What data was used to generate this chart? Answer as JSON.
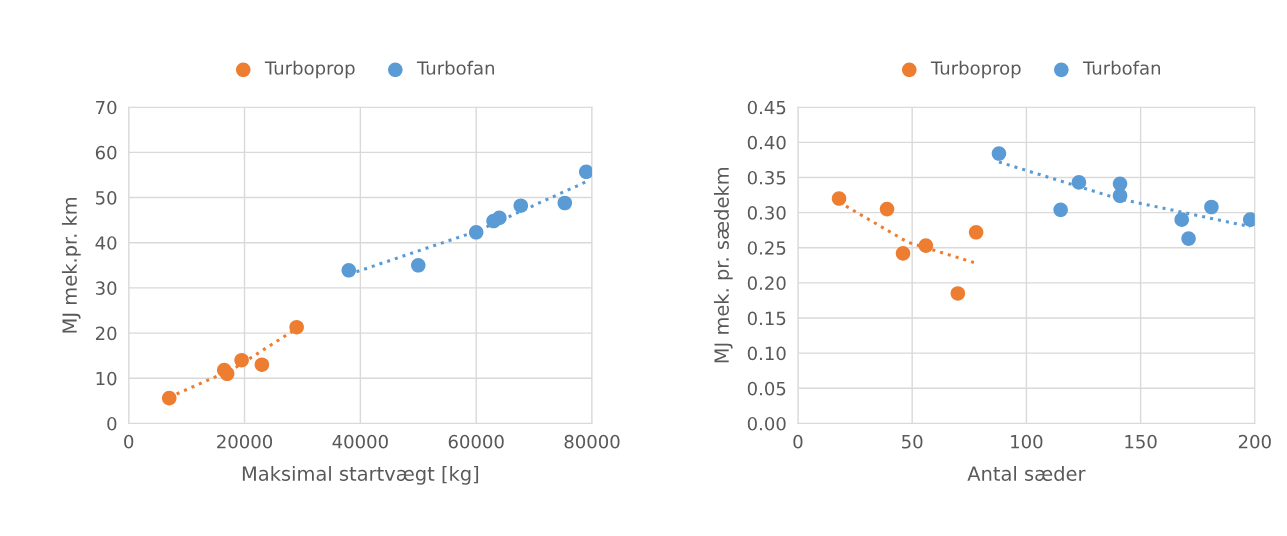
{
  "chart_data": [
    {
      "type": "scatter",
      "xlabel": "Maksimal startvægt [kg]",
      "ylabel": "MJ mek.pr. km",
      "xlim": [
        0,
        80000
      ],
      "xticks": [
        0,
        20000,
        40000,
        60000,
        80000
      ],
      "ylim": [
        0,
        70
      ],
      "yticks": [
        0,
        10,
        20,
        30,
        40,
        50,
        60,
        70
      ],
      "grid": true,
      "legend": "top",
      "series": [
        {
          "name": "Turboprop",
          "marker": "circle",
          "color": "#ed7d31",
          "x": [
            7000,
            16500,
            17000,
            19500,
            23000,
            29000
          ],
          "values": [
            5.6,
            11.8,
            11,
            14,
            13,
            21.3
          ]
        },
        {
          "name": "Turbofan",
          "marker": "circle",
          "color": "#5b9bd5",
          "x": [
            38000,
            50000,
            60000,
            63000,
            64000,
            67700,
            75300,
            79000
          ],
          "values": [
            33.9,
            35,
            42.3,
            44.8,
            45.5,
            48.2,
            48.8,
            55.7
          ]
        },
        {
          "type": "line",
          "marker": "none",
          "line_style": "dotted",
          "color": "#ed7d31",
          "x": [
            7000,
            18000,
            29000
          ],
          "values": [
            5.8,
            12,
            21
          ]
        },
        {
          "type": "line",
          "marker": "none",
          "line_style": "dotted",
          "color": "#5b9bd5",
          "x": [
            38000,
            60000,
            79000
          ],
          "values": [
            33,
            42.5,
            53.5
          ]
        }
      ]
    },
    {
      "type": "scatter",
      "xlabel": "Antal sæder",
      "ylabel": "MJ mek. pr. sædekm",
      "xlim": [
        0,
        200
      ],
      "xticks": [
        0,
        50,
        100,
        150,
        200
      ],
      "ylim": [
        0,
        0.45
      ],
      "yticks": [
        {
          "value": 0,
          "label": "0.00"
        },
        {
          "value": 0.05,
          "label": "0.05"
        },
        {
          "value": 0.1,
          "label": "0.10"
        },
        {
          "value": 0.15,
          "label": "0.15"
        },
        {
          "value": 0.2,
          "label": "0.20"
        },
        {
          "value": 0.25,
          "label": "0.25"
        },
        {
          "value": 0.3,
          "label": "0.30"
        },
        {
          "value": 0.35,
          "label": "0.35"
        },
        {
          "value": 0.4,
          "label": "0.40"
        },
        {
          "value": 0.45,
          "label": "0.45"
        }
      ],
      "grid": true,
      "legend": "top",
      "series": [
        {
          "name": "Turboprop",
          "marker": "circle",
          "color": "#ed7d31",
          "x": [
            18,
            39,
            46,
            56,
            70,
            78
          ],
          "values": [
            0.32,
            0.305,
            0.242,
            0.253,
            0.185,
            0.272
          ]
        },
        {
          "name": "Turbofan",
          "marker": "circle",
          "color": "#5b9bd5",
          "x": [
            88,
            115,
            123,
            141,
            141,
            168,
            171,
            181,
            198
          ],
          "values": [
            0.384,
            0.304,
            0.343,
            0.341,
            0.324,
            0.29,
            0.263,
            0.308,
            0.29
          ]
        },
        {
          "type": "line",
          "marker": "none",
          "line_style": "dotted",
          "color": "#ed7d31",
          "x": [
            18,
            48,
            78
          ],
          "values": [
            0.315,
            0.258,
            0.228
          ]
        },
        {
          "type": "line",
          "marker": "none",
          "line_style": "dotted",
          "color": "#5b9bd5",
          "x": [
            88,
            140,
            198
          ],
          "values": [
            0.372,
            0.32,
            0.28
          ]
        }
      ]
    }
  ]
}
